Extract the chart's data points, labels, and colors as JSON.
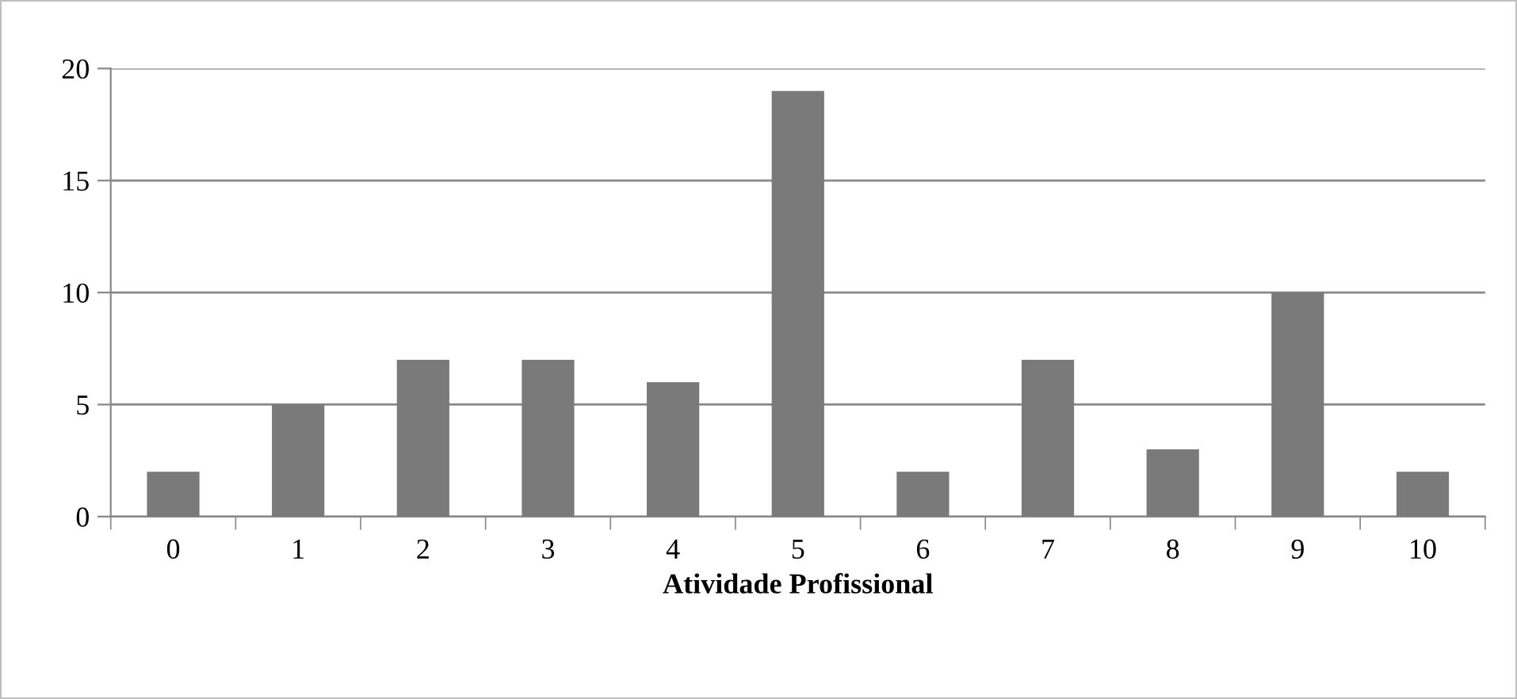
{
  "chart_data": {
    "type": "bar",
    "xlabel": "Atividade Profissional",
    "categories": [
      "0",
      "1",
      "2",
      "3",
      "4",
      "5",
      "6",
      "7",
      "8",
      "9",
      "10"
    ],
    "values": [
      2,
      5,
      7,
      7,
      6,
      19,
      2,
      7,
      3,
      10,
      2
    ],
    "color": "#7a7a7a",
    "ylim": [
      0,
      20
    ],
    "yticks": [
      0,
      5,
      10,
      15,
      20
    ],
    "grid": "y",
    "legend": false
  }
}
